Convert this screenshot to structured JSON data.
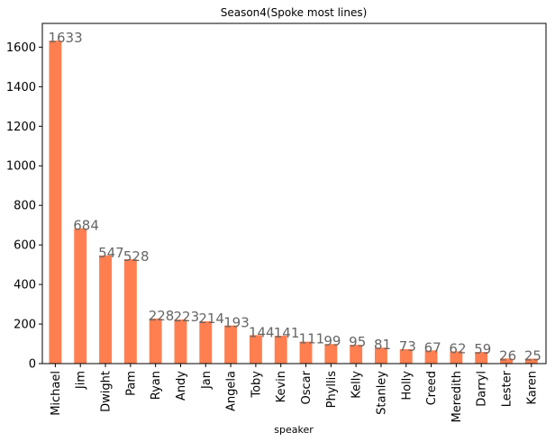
{
  "chart_data": {
    "type": "bar",
    "title": "Season4(Spoke most lines)",
    "xlabel": "speaker",
    "ylabel": "",
    "ylim": [
      0,
      1720
    ],
    "yticks": [
      0,
      200,
      400,
      600,
      800,
      1000,
      1200,
      1400,
      1600
    ],
    "grid": false,
    "legend": "none",
    "bar_color": "#ff7f50",
    "label_color": "#666666",
    "categories": [
      "Michael",
      "Jim",
      "Dwight",
      "Pam",
      "Ryan",
      "Andy",
      "Jan",
      "Angela",
      "Toby",
      "Kevin",
      "Oscar",
      "Phyllis",
      "Kelly",
      "Stanley",
      "Holly",
      "Creed",
      "Meredith",
      "Darryl",
      "Lester",
      "Karen"
    ],
    "values": [
      1633,
      684,
      547,
      528,
      228,
      223,
      214,
      193,
      144,
      141,
      111,
      99,
      95,
      81,
      73,
      67,
      62,
      59,
      26,
      25
    ]
  }
}
